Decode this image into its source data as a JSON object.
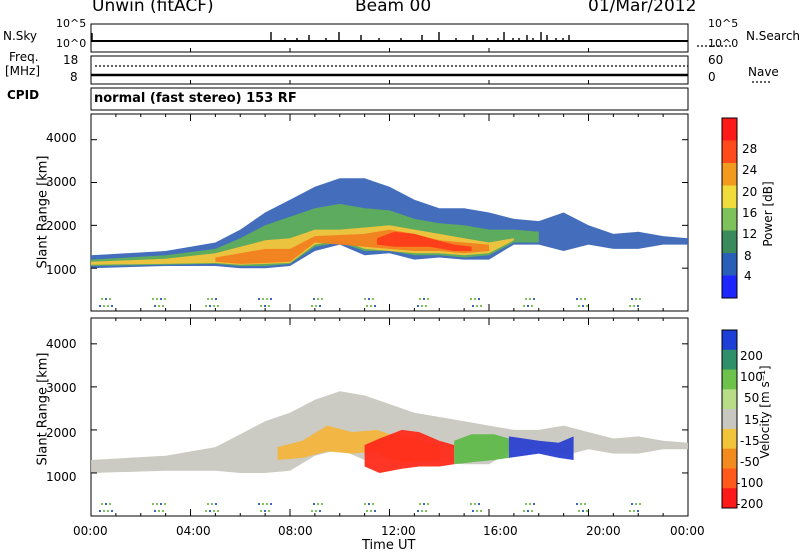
{
  "header": {
    "station": "Unwin (fitACF)",
    "beam": "Beam 00",
    "date": "01/Mar/2012"
  },
  "strip_nsky": {
    "label": "N.Sky",
    "tick_top": "10^5",
    "tick_bottom": "10^0",
    "right_label": "N.Search",
    "right_tick_top": "10^5",
    "right_tick_bottom": "10^0"
  },
  "strip_freq": {
    "label_line1": "Freq.",
    "label_line2": "[MHz]",
    "tick_top": "18",
    "tick_bottom": "8",
    "right_label": "Nave",
    "right_tick_top": "60",
    "right_tick_bottom": "0"
  },
  "cpid": {
    "label": "CPID",
    "text": "normal (fast stereo) 153 RF"
  },
  "chart_data": [
    {
      "type": "heatmap",
      "panel": "power",
      "xlabel": "",
      "ylabel": "Slant Range [km]",
      "xlim": [
        "00:00",
        "24:00"
      ],
      "ylim": [
        0,
        4600
      ],
      "yticks": [
        "1000",
        "2000",
        "3000",
        "4000"
      ],
      "colorbar": {
        "label": "Power [dB]",
        "ticks": [
          "4",
          "8",
          "12",
          "16",
          "20",
          "24",
          "28"
        ],
        "colors": [
          "#1d26ff",
          "#2a5fb8",
          "#3a8a5c",
          "#7fc15a",
          "#f2dc3c",
          "#f29a1e",
          "#ff4a1a",
          "#ff1a1a"
        ]
      },
      "series": [
        {
          "name": "",
          "color": "#3a66b8",
          "bands": [
            [
              0,
              1000,
              1300
            ],
            [
              3,
              1050,
              1400
            ],
            [
              5,
              1050,
              1600
            ],
            [
              6,
              1000,
              1900
            ],
            [
              7,
              1000,
              2300
            ],
            [
              8,
              1050,
              2600
            ],
            [
              9,
              1400,
              2900
            ],
            [
              10,
              1550,
              3100
            ],
            [
              11,
              1300,
              3100
            ],
            [
              12,
              1350,
              2900
            ],
            [
              13,
              1200,
              2600
            ],
            [
              14,
              1250,
              2400
            ],
            [
              15,
              1200,
              2400
            ],
            [
              16,
              1200,
              2300
            ],
            [
              17,
              1550,
              2150
            ],
            [
              18,
              1550,
              2100
            ],
            [
              19,
              1400,
              2300
            ],
            [
              20,
              1550,
              2000
            ],
            [
              21,
              1450,
              1800
            ],
            [
              22,
              1450,
              1850
            ],
            [
              23,
              1550,
              1750
            ],
            [
              24,
              1550,
              1700
            ]
          ]
        },
        {
          "name": "",
          "color": "#5fae58",
          "bands": [
            [
              0,
              1050,
              1200
            ],
            [
              3,
              1080,
              1300
            ],
            [
              5,
              1100,
              1450
            ],
            [
              6,
              1050,
              1700
            ],
            [
              7,
              1050,
              2000
            ],
            [
              8,
              1100,
              2200
            ],
            [
              9,
              1500,
              2400
            ],
            [
              10,
              1600,
              2500
            ],
            [
              11,
              1400,
              2400
            ],
            [
              12,
              1400,
              2350
            ],
            [
              13,
              1300,
              2150
            ],
            [
              14,
              1300,
              2050
            ],
            [
              15,
              1250,
              2000
            ],
            [
              16,
              1300,
              1900
            ],
            [
              17,
              1600,
              1900
            ],
            [
              18,
              1600,
              1850
            ]
          ]
        },
        {
          "name": "",
          "color": "#f2c43c",
          "bands": [
            [
              0,
              1080,
              1150
            ],
            [
              3,
              1100,
              1220
            ],
            [
              5,
              1120,
              1350
            ],
            [
              6,
              1080,
              1500
            ],
            [
              7,
              1100,
              1650
            ],
            [
              8,
              1120,
              1700
            ],
            [
              9,
              1550,
              1900
            ],
            [
              10,
              1650,
              1900
            ],
            [
              11,
              1450,
              1950
            ],
            [
              12,
              1400,
              2000
            ],
            [
              13,
              1350,
              1900
            ],
            [
              14,
              1350,
              1800
            ],
            [
              15,
              1300,
              1700
            ],
            [
              16,
              1350,
              1600
            ],
            [
              17,
              1650,
              1700
            ]
          ]
        },
        {
          "name": "",
          "color": "#f28020",
          "bands": [
            [
              5,
              1150,
              1250
            ],
            [
              6,
              1100,
              1350
            ],
            [
              7,
              1120,
              1450
            ],
            [
              8,
              1150,
              1450
            ],
            [
              9,
              1600,
              1750
            ],
            [
              11,
              1500,
              1800
            ],
            [
              12,
              1450,
              1900
            ],
            [
              13,
              1400,
              1800
            ],
            [
              14,
              1400,
              1650
            ],
            [
              15,
              1350,
              1600
            ],
            [
              16,
              1400,
              1550
            ]
          ]
        },
        {
          "name": "",
          "color": "#ff3a1a",
          "bands": [
            [
              11.5,
              1550,
              1700
            ],
            [
              12.2,
              1500,
              1850
            ],
            [
              13,
              1500,
              1800
            ],
            [
              13.6,
              1500,
              1700
            ],
            [
              14.6,
              1400,
              1550
            ],
            [
              15.3,
              1400,
              1500
            ]
          ]
        }
      ]
    },
    {
      "type": "heatmap",
      "panel": "velocity",
      "xlabel": "Time UT",
      "ylabel": "Slant Range [km]",
      "xlim": [
        "00:00",
        "24:00"
      ],
      "ylim": [
        0,
        4600
      ],
      "xticks": [
        "00:00",
        "04:00",
        "08:00",
        "12:00",
        "16:00",
        "20:00",
        "00:00"
      ],
      "yticks": [
        "1000",
        "2000",
        "3000",
        "4000"
      ],
      "colorbar": {
        "label": "Velocity [m s⁻¹]",
        "ticks": [
          "200",
          "100",
          "50",
          "15",
          "-15",
          "-50",
          "-100",
          "-200"
        ],
        "colors": [
          "#1d3fd8",
          "#2f8f6a",
          "#6cc24a",
          "#b8dd88",
          "#c8c8c0",
          "#f2c43c",
          "#f28a1e",
          "#ff5a1a",
          "#ff1a1a"
        ]
      },
      "series": [
        {
          "name": "",
          "color": "#c8c8c0",
          "bands": [
            [
              0,
              1000,
              1300
            ],
            [
              3,
              1050,
              1400
            ],
            [
              5,
              1050,
              1600
            ],
            [
              6,
              1000,
              1900
            ],
            [
              7,
              1000,
              2200
            ],
            [
              8,
              1050,
              2400
            ],
            [
              9,
              1400,
              2700
            ],
            [
              10,
              1550,
              2900
            ],
            [
              11,
              1300,
              2800
            ],
            [
              12,
              1350,
              2600
            ],
            [
              13,
              1200,
              2400
            ],
            [
              14,
              1250,
              2300
            ],
            [
              15,
              1200,
              2200
            ],
            [
              16,
              1200,
              2100
            ],
            [
              17,
              1550,
              2000
            ],
            [
              18,
              1550,
              2000
            ],
            [
              19,
              1400,
              2100
            ],
            [
              20,
              1550,
              1950
            ],
            [
              21,
              1450,
              1800
            ],
            [
              22,
              1450,
              1850
            ],
            [
              23,
              1550,
              1750
            ],
            [
              24,
              1550,
              1700
            ]
          ]
        },
        {
          "name": "",
          "color": "#f2b43c",
          "bands": [
            [
              7.5,
              1300,
              1600
            ],
            [
              8.5,
              1350,
              1750
            ],
            [
              9.5,
              1500,
              2100
            ],
            [
              10.5,
              1450,
              1950
            ],
            [
              11.5,
              1500,
              2000
            ],
            [
              12,
              1300,
              1900
            ],
            [
              13,
              1250,
              1800
            ],
            [
              14,
              1300,
              1650
            ]
          ]
        },
        {
          "name": "",
          "color": "#ff2a1a",
          "bands": [
            [
              11,
              1150,
              1650
            ],
            [
              11.6,
              1000,
              1800
            ],
            [
              12.5,
              1100,
              2000
            ],
            [
              13.2,
              1150,
              1950
            ],
            [
              14,
              1150,
              1750
            ],
            [
              14.6,
              1200,
              1650
            ]
          ]
        },
        {
          "name": "",
          "color": "#5fb84a",
          "bands": [
            [
              14.6,
              1200,
              1750
            ],
            [
              15.3,
              1250,
              1900
            ],
            [
              16.2,
              1300,
              1900
            ],
            [
              16.8,
              1350,
              1800
            ]
          ]
        },
        {
          "name": "",
          "color": "#2a40d0",
          "bands": [
            [
              16.8,
              1350,
              1850
            ],
            [
              17.4,
              1400,
              1800
            ],
            [
              18,
              1450,
              1750
            ],
            [
              18.8,
              1350,
              1700
            ],
            [
              19.4,
              1300,
              1850
            ]
          ]
        }
      ]
    }
  ]
}
